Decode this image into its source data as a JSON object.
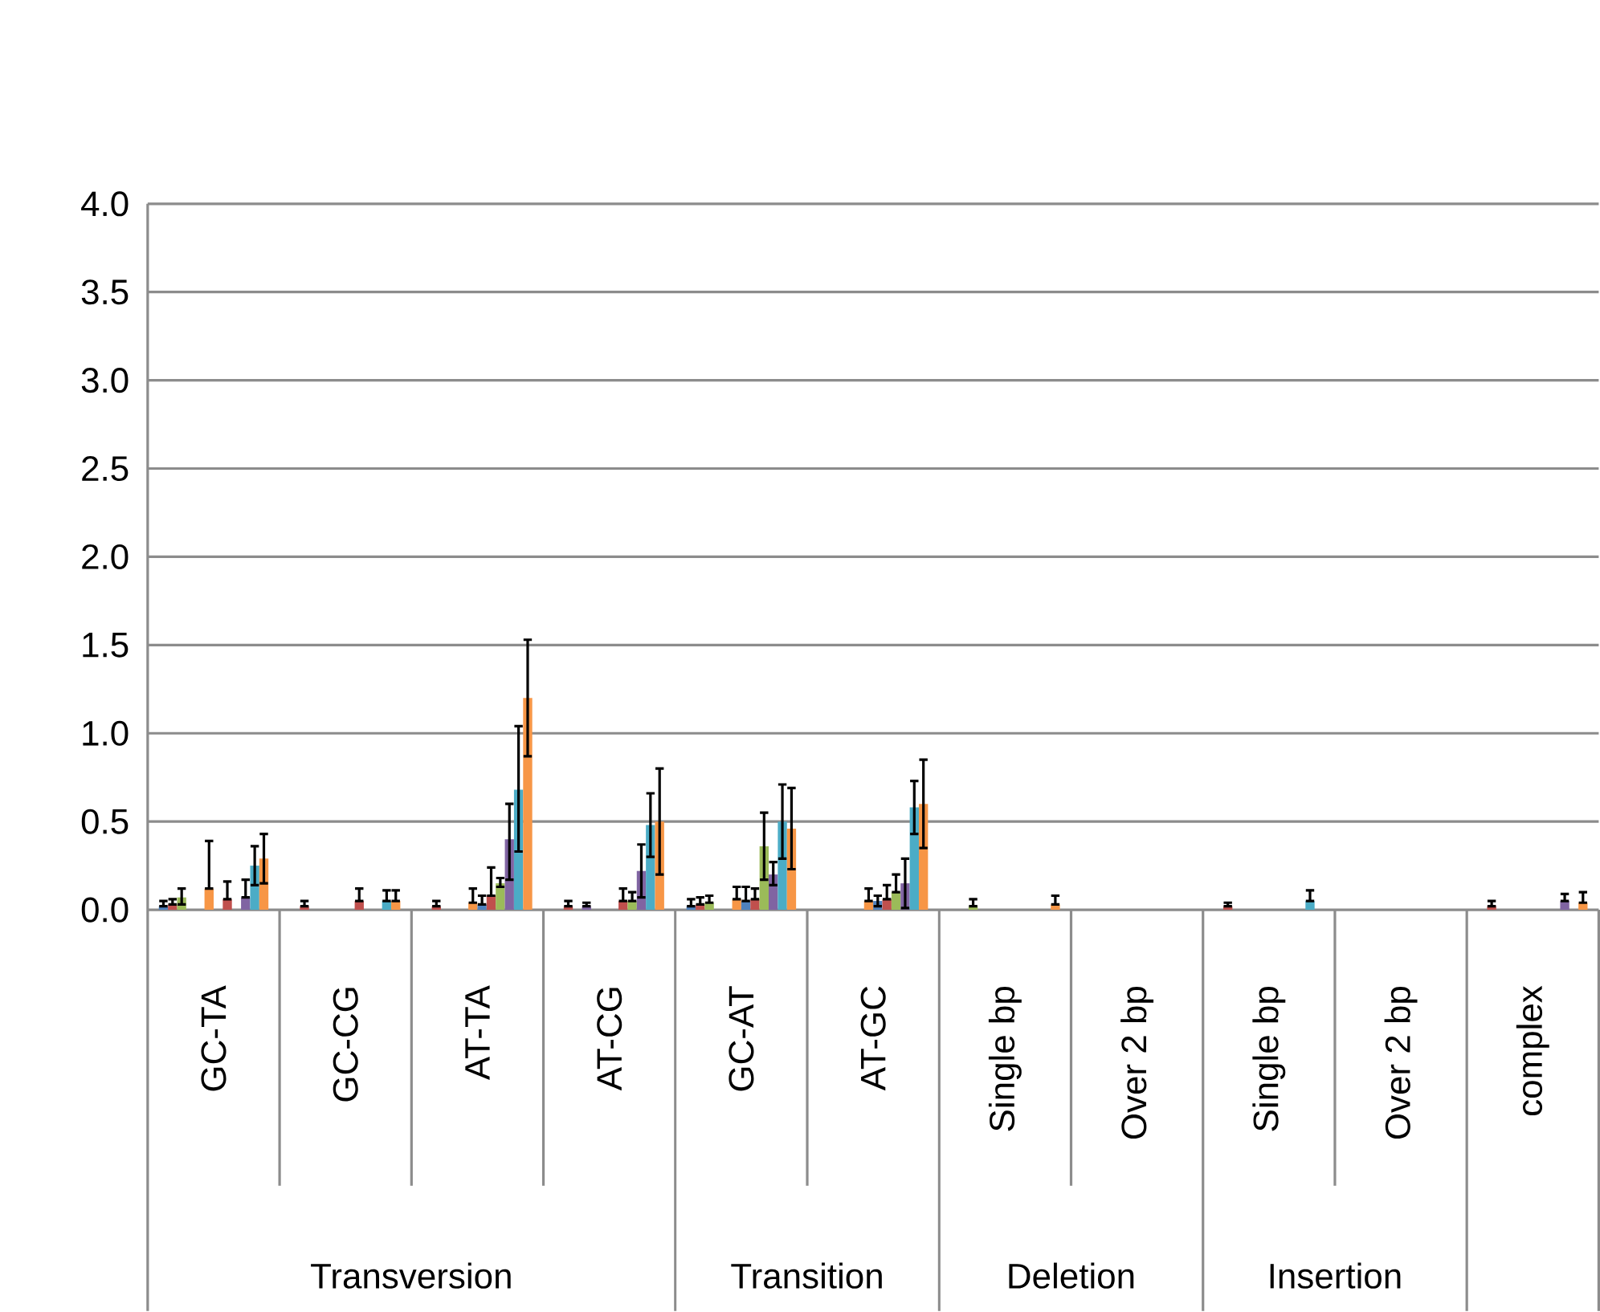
{
  "chart_data": {
    "type": "bar",
    "categories": [
      "GC-TA",
      "GC-CG",
      "AT-TA",
      "AT-CG",
      "GC-AT",
      "AT-GC",
      "Single bp",
      "Over 2 bp",
      "Single bp",
      "Over 2 bp",
      "complex"
    ],
    "annotations": [
      "Transversion",
      "Transition",
      "Deletion",
      "Insertion"
    ],
    "ylim": [
      0,
      4
    ],
    "yticks": [
      {
        "value": 0,
        "label": "0.0"
      },
      {
        "value": 0.5,
        "label": "0.5"
      },
      {
        "value": 1,
        "label": "1.0"
      },
      {
        "value": 1.5,
        "label": "1.5"
      },
      {
        "value": 2,
        "label": "2.0"
      },
      {
        "value": 2.5,
        "label": "2.5"
      },
      {
        "value": 3,
        "label": "3.0"
      },
      {
        "value": 3.5,
        "label": "3.5"
      },
      {
        "value": 4,
        "label": "4.0"
      }
    ],
    "grid": "y",
    "series": [
      {
        "color": "#4f81bd",
        "values": [
          0.02,
          0,
          0,
          0,
          0.02,
          0,
          0,
          0,
          0,
          0,
          0
        ],
        "errors": [
          [
            0.02,
            0.05
          ],
          null,
          null,
          null,
          [
            0.02,
            0.06
          ],
          null,
          null,
          null,
          null,
          null,
          null
        ]
      },
      {
        "color": "#c0504d",
        "values": [
          0.03,
          0.02,
          0.02,
          0.02,
          0.03,
          0,
          0,
          0,
          0.02,
          0,
          0.02
        ],
        "errors": [
          [
            0.03,
            0.06
          ],
          [
            0.02,
            0.05
          ],
          [
            0.02,
            0.05
          ],
          [
            0.02,
            0.05
          ],
          [
            0.03,
            0.07
          ],
          null,
          null,
          null,
          [
            0.02,
            0.04
          ],
          null,
          [
            0.02,
            0.05
          ]
        ]
      },
      {
        "color": "#9bbb59",
        "values": [
          0.07,
          0,
          0,
          0,
          0.04,
          0,
          0.02,
          0,
          0,
          0,
          0
        ],
        "errors": [
          [
            0.03,
            0.12
          ],
          null,
          null,
          null,
          [
            0.04,
            0.08
          ],
          null,
          [
            0.02,
            0.06
          ],
          null,
          null,
          null,
          null
        ]
      },
      {
        "color": "#8064a2",
        "values": [
          0,
          0,
          0,
          0.02,
          0,
          0,
          0,
          0,
          0,
          0,
          0
        ],
        "errors": [
          null,
          null,
          null,
          [
            0.02,
            0.04
          ],
          null,
          null,
          null,
          null,
          null,
          null,
          null
        ]
      },
      {
        "color": "#4bacc6",
        "values": [
          0,
          0,
          0,
          0,
          0,
          0,
          0,
          0,
          0,
          0,
          0
        ]
      },
      {
        "color": "#f79646",
        "values": [
          0.12,
          0,
          0.04,
          0,
          0.06,
          0.05,
          0,
          0,
          0,
          0,
          0
        ],
        "errors": [
          [
            0.12,
            0.39
          ],
          null,
          [
            0.04,
            0.12
          ],
          null,
          [
            0.06,
            0.13
          ],
          [
            0.05,
            0.12
          ],
          null,
          null,
          null,
          null,
          null
        ]
      },
      {
        "color": "#4f81bd",
        "values": [
          0,
          0,
          0.03,
          0,
          0.05,
          0.05,
          0,
          0,
          0,
          0,
          0
        ],
        "errors": [
          null,
          null,
          [
            0.03,
            0.08
          ],
          null,
          [
            0.05,
            0.13
          ],
          [
            0.02,
            0.08
          ],
          null,
          null,
          null,
          null,
          null
        ]
      },
      {
        "color": "#c0504d",
        "values": [
          0.06,
          0.05,
          0.08,
          0.05,
          0.06,
          0.06,
          0,
          0,
          0,
          0,
          0
        ],
        "errors": [
          [
            0.06,
            0.16
          ],
          [
            0.05,
            0.12
          ],
          [
            0.08,
            0.24
          ],
          [
            0.05,
            0.12
          ],
          [
            0.06,
            0.12
          ],
          [
            0.06,
            0.14
          ],
          null,
          null,
          null,
          null,
          null
        ]
      },
      {
        "color": "#9bbb59",
        "values": [
          0,
          0,
          0.15,
          0.05,
          0.36,
          0.1,
          0,
          0,
          0,
          0,
          0
        ],
        "errors": [
          null,
          null,
          [
            0.13,
            0.18
          ],
          [
            0.05,
            0.1
          ],
          [
            0.17,
            0.55
          ],
          [
            0.1,
            0.2
          ],
          null,
          null,
          null,
          null,
          null
        ]
      },
      {
        "color": "#8064a2",
        "values": [
          0.07,
          0,
          0.4,
          0.22,
          0.2,
          0.15,
          0,
          0,
          0,
          0,
          0.05
        ],
        "errors": [
          [
            0.07,
            0.17
          ],
          null,
          [
            0.17,
            0.6
          ],
          [
            0.07,
            0.37
          ],
          [
            0.14,
            0.27
          ],
          [
            0.01,
            0.29
          ],
          null,
          null,
          null,
          null,
          [
            0.05,
            0.09
          ]
        ]
      },
      {
        "color": "#4bacc6",
        "values": [
          0.25,
          0.05,
          0.68,
          0.48,
          0.5,
          0.58,
          0,
          0,
          0.05,
          0,
          0
        ],
        "errors": [
          [
            0.14,
            0.36
          ],
          [
            0.05,
            0.11
          ],
          [
            0.33,
            1.04
          ],
          [
            0.3,
            0.66
          ],
          [
            0.29,
            0.71
          ],
          [
            0.43,
            0.73
          ],
          null,
          null,
          [
            0.05,
            0.11
          ],
          null,
          null
        ]
      },
      {
        "color": "#f79646",
        "values": [
          0.29,
          0.05,
          1.2,
          0.5,
          0.46,
          0.6,
          0.03,
          0,
          0,
          0,
          0.04
        ],
        "errors": [
          [
            0.15,
            0.43
          ],
          [
            0.05,
            0.11
          ],
          [
            0.87,
            1.53
          ],
          [
            0.2,
            0.8
          ],
          [
            0.23,
            0.69
          ],
          [
            0.35,
            0.85
          ],
          [
            0.03,
            0.08
          ],
          null,
          null,
          null,
          [
            0.04,
            0.1
          ]
        ]
      }
    ]
  }
}
